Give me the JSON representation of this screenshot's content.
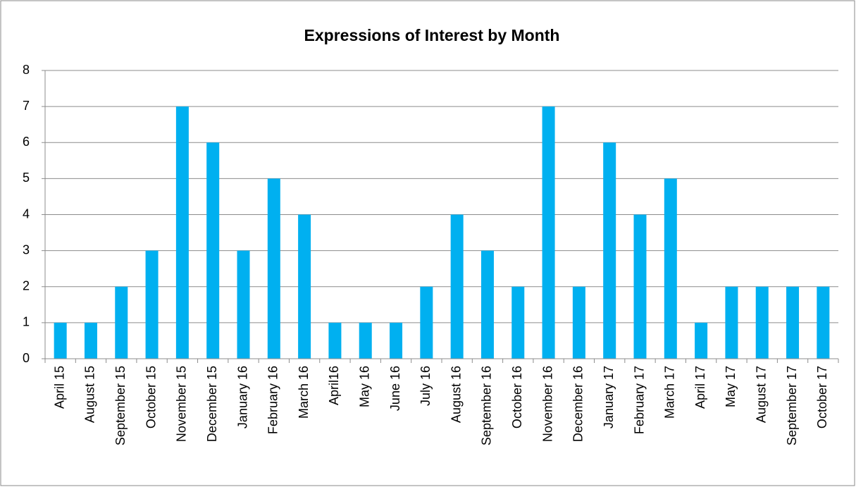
{
  "chart_data": {
    "type": "bar",
    "title": "Expressions of Interest by Month",
    "categories": [
      "April 15",
      "August 15",
      "September 15",
      "October 15",
      "November 15",
      "December 15",
      "January 16",
      "February 16",
      "March 16",
      "April16",
      "May 16",
      "June 16",
      "July 16",
      "August 16",
      "September 16",
      "October 16",
      "November 16",
      "December 16",
      "January 17",
      "February 17",
      "March 17",
      "April 17",
      "May 17",
      "August 17",
      "September 17",
      "October 17"
    ],
    "values": [
      1,
      1,
      2,
      3,
      7,
      6,
      3,
      5,
      4,
      1,
      1,
      1,
      2,
      4,
      3,
      2,
      7,
      2,
      6,
      4,
      5,
      1,
      2,
      2,
      2,
      2
    ],
    "color": "#00b0f0",
    "ylim": [
      0,
      8
    ],
    "yticks": [
      0,
      1,
      2,
      3,
      4,
      5,
      6,
      7,
      8
    ],
    "grid": true
  }
}
